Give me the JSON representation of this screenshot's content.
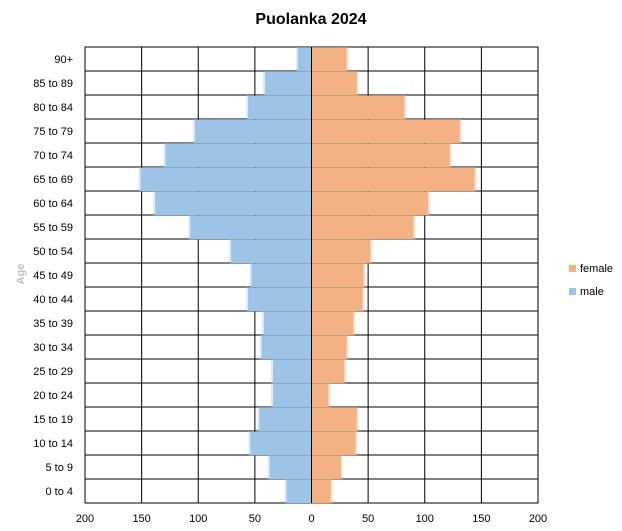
{
  "chart_data": {
    "type": "bar",
    "orientation": "horizontal-population-pyramid",
    "title": "Puolanka 2024",
    "ylabel": "Age",
    "xlabel": "",
    "categories": [
      "0 to 4",
      "5 to 9",
      "10 to 14",
      "15 to 19",
      "20 to 24",
      "25 to 29",
      "30 to 34",
      "35 to 39",
      "40 to 44",
      "45 to 49",
      "50 to 54",
      "55 to 59",
      "60 to 64",
      "65 to 69",
      "70 to 74",
      "75 to 79",
      "80 to 84",
      "85 to 89",
      "90+"
    ],
    "series": [
      {
        "name": "female",
        "color": "#f4b183",
        "values": [
          17,
          26,
          39,
          40,
          15,
          29,
          31,
          37,
          45,
          46,
          52,
          90,
          103,
          144,
          122,
          131,
          82,
          40,
          31
        ]
      },
      {
        "name": "male",
        "color": "#9dc3e6",
        "values": [
          22,
          37,
          54,
          46,
          34,
          34,
          44,
          42,
          56,
          53,
          71,
          107,
          138,
          151,
          129,
          103,
          56,
          41,
          12
        ]
      }
    ],
    "xlim": [
      -200,
      200
    ],
    "xticks": [
      "200",
      "150",
      "100",
      "50",
      "0",
      "50",
      "100",
      "150",
      "200"
    ],
    "xtick_values": [
      -200,
      -150,
      -100,
      -50,
      0,
      50,
      100,
      150,
      200
    ],
    "grid": true,
    "legend_position": "right"
  }
}
